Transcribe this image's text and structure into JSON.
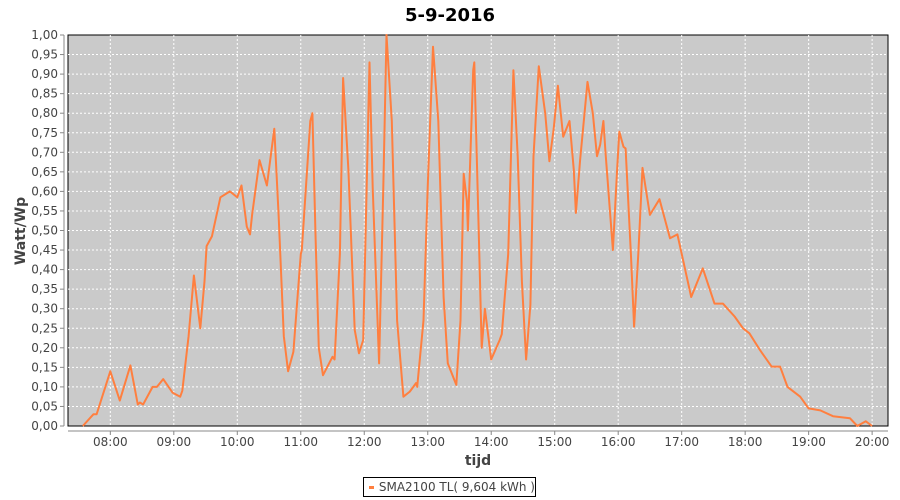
{
  "chart_data": {
    "type": "line",
    "title": "5-9-2016",
    "xlabel": "tijd",
    "ylabel": "Watt/Wp",
    "xlim": [
      "07:20",
      "20:15"
    ],
    "ylim": [
      0,
      1
    ],
    "x_ticks": [
      "08:00",
      "09:00",
      "10:00",
      "11:00",
      "12:00",
      "13:00",
      "14:00",
      "15:00",
      "16:00",
      "17:00",
      "18:00",
      "19:00",
      "20:00"
    ],
    "y_ticks": [
      "0,00",
      "0,05",
      "0,10",
      "0,15",
      "0,20",
      "0,25",
      "0,30",
      "0,35",
      "0,40",
      "0,45",
      "0,50",
      "0,55",
      "0,60",
      "0,65",
      "0,70",
      "0,75",
      "0,80",
      "0,85",
      "0,90",
      "0,95",
      "1,00"
    ],
    "grid": true,
    "legend_position": "bottom",
    "background": "#cacaca",
    "series": [
      {
        "name": "SMA2100 TL( 9,604 kWh )",
        "color": "#ff7f3f",
        "points": [
          [
            "07:34",
            0
          ],
          [
            "07:44",
            0.03
          ],
          [
            "07:47",
            0.03
          ],
          [
            "08:00",
            0.14
          ],
          [
            "08:09",
            0.065
          ],
          [
            "08:19",
            0.155
          ],
          [
            "08:26",
            0.055
          ],
          [
            "08:28",
            0.06
          ],
          [
            "08:31",
            0.055
          ],
          [
            "08:40",
            0.1
          ],
          [
            "08:44",
            0.1
          ],
          [
            "08:50",
            0.12
          ],
          [
            "08:59",
            0.085
          ],
          [
            "09:06",
            0.075
          ],
          [
            "09:08",
            0.09
          ],
          [
            "09:14",
            0.23
          ],
          [
            "09:19",
            0.385
          ],
          [
            "09:25",
            0.25
          ],
          [
            "09:29",
            0.37
          ],
          [
            "09:31",
            0.46
          ],
          [
            "09:36",
            0.485
          ],
          [
            "09:44",
            0.585
          ],
          [
            "09:53",
            0.6
          ],
          [
            "10:00",
            0.585
          ],
          [
            "10:04",
            0.615
          ],
          [
            "10:09",
            0.51
          ],
          [
            "10:12",
            0.49
          ],
          [
            "10:14",
            0.54
          ],
          [
            "10:21",
            0.68
          ],
          [
            "10:28",
            0.615
          ],
          [
            "10:35",
            0.76
          ],
          [
            "10:39",
            0.54
          ],
          [
            "10:44",
            0.23
          ],
          [
            "10:48",
            0.14
          ],
          [
            "10:53",
            0.19
          ],
          [
            "11:00",
            0.44
          ],
          [
            "11:01",
            0.45
          ],
          [
            "11:09",
            0.78
          ],
          [
            "11:11",
            0.8
          ],
          [
            "11:14",
            0.48
          ],
          [
            "11:17",
            0.2
          ],
          [
            "11:21",
            0.13
          ],
          [
            "11:30",
            0.177
          ],
          [
            "11:32",
            0.17
          ],
          [
            "11:37",
            0.44
          ],
          [
            "11:40",
            0.89
          ],
          [
            "11:45",
            0.655
          ],
          [
            "11:51",
            0.246
          ],
          [
            "11:55",
            0.186
          ],
          [
            "11:59",
            0.22
          ],
          [
            "12:05",
            0.93
          ],
          [
            "12:08",
            0.61
          ],
          [
            "12:14",
            0.16
          ],
          [
            "12:18",
            0.61
          ],
          [
            "12:21",
            1.0
          ],
          [
            "12:26",
            0.78
          ],
          [
            "12:31",
            0.27
          ],
          [
            "12:37",
            0.075
          ],
          [
            "12:43",
            0.088
          ],
          [
            "12:49",
            0.11
          ],
          [
            "12:50",
            0.1
          ],
          [
            "12:56",
            0.27
          ],
          [
            "13:00",
            0.61
          ],
          [
            "13:05",
            0.97
          ],
          [
            "13:10",
            0.78
          ],
          [
            "13:15",
            0.33
          ],
          [
            "13:19",
            0.16
          ],
          [
            "13:27",
            0.105
          ],
          [
            "13:31",
            0.27
          ],
          [
            "13:34",
            0.645
          ],
          [
            "13:37",
            0.575
          ],
          [
            "13:38",
            0.5
          ],
          [
            "13:43",
            0.91
          ],
          [
            "13:44",
            0.93
          ],
          [
            "13:48",
            0.52
          ],
          [
            "13:51",
            0.2
          ],
          [
            "13:54",
            0.3
          ],
          [
            "14:00",
            0.17
          ],
          [
            "14:08",
            0.22
          ],
          [
            "14:10",
            0.235
          ],
          [
            "14:16",
            0.44
          ],
          [
            "14:21",
            0.91
          ],
          [
            "14:25",
            0.69
          ],
          [
            "14:29",
            0.37
          ],
          [
            "14:33",
            0.17
          ],
          [
            "14:37",
            0.31
          ],
          [
            "14:40",
            0.69
          ],
          [
            "14:45",
            0.92
          ],
          [
            "14:51",
            0.8
          ],
          [
            "14:55",
            0.677
          ],
          [
            "14:59",
            0.76
          ],
          [
            "15:03",
            0.87
          ],
          [
            "15:08",
            0.74
          ],
          [
            "15:14",
            0.78
          ],
          [
            "15:18",
            0.655
          ],
          [
            "15:20",
            0.545
          ],
          [
            "15:24",
            0.68
          ],
          [
            "15:31",
            0.88
          ],
          [
            "15:36",
            0.8
          ],
          [
            "15:40",
            0.69
          ],
          [
            "15:43",
            0.72
          ],
          [
            "15:46",
            0.78
          ],
          [
            "15:48",
            0.7
          ],
          [
            "15:55",
            0.45
          ],
          [
            "15:59",
            0.655
          ],
          [
            "16:01",
            0.753
          ],
          [
            "16:05",
            0.714
          ],
          [
            "16:07",
            0.71
          ],
          [
            "16:12",
            0.44
          ],
          [
            "16:15",
            0.254
          ],
          [
            "16:19",
            0.44
          ],
          [
            "16:23",
            0.66
          ],
          [
            "16:30",
            0.54
          ],
          [
            "16:39",
            0.58
          ],
          [
            "16:49",
            0.48
          ],
          [
            "16:56",
            0.49
          ],
          [
            "17:09",
            0.33
          ],
          [
            "17:20",
            0.403
          ],
          [
            "17:31",
            0.313
          ],
          [
            "17:39",
            0.313
          ],
          [
            "17:50",
            0.28
          ],
          [
            "17:58",
            0.25
          ],
          [
            "18:04",
            0.237
          ],
          [
            "18:14",
            0.194
          ],
          [
            "18:25",
            0.152
          ],
          [
            "18:33",
            0.152
          ],
          [
            "18:40",
            0.1
          ],
          [
            "18:52",
            0.075
          ],
          [
            "19:00",
            0.045
          ],
          [
            "19:11",
            0.04
          ],
          [
            "19:23",
            0.025
          ],
          [
            "19:39",
            0.02
          ],
          [
            "19:46",
            0
          ],
          [
            "19:54",
            0.012
          ],
          [
            "20:00",
            0
          ]
        ]
      }
    ]
  }
}
